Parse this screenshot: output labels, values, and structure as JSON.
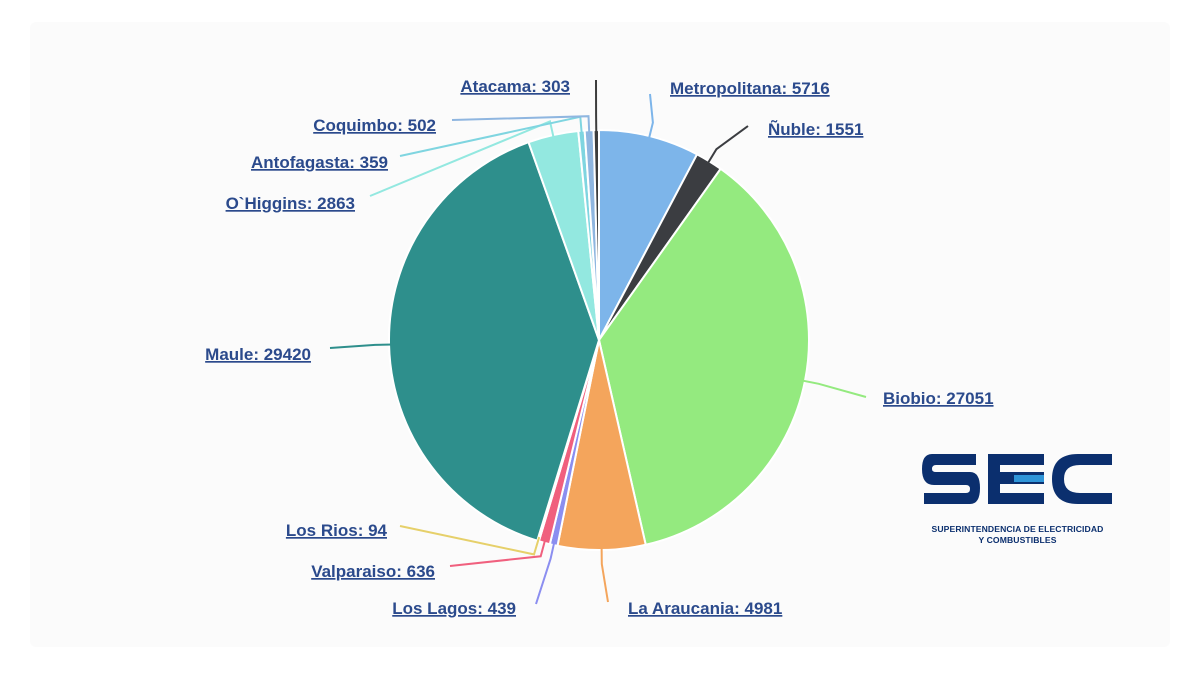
{
  "chart_data": {
    "type": "pie",
    "title": "",
    "label_format": "{name}: {value}",
    "slices": [
      {
        "name": "Metropolitana",
        "value": 5716,
        "color": "#7db5ea"
      },
      {
        "name": "Ñuble",
        "value": 1551,
        "color": "#3b3d41"
      },
      {
        "name": "Biobio",
        "value": 27051,
        "color": "#94ea7f"
      },
      {
        "name": "La Araucania",
        "value": 4981,
        "color": "#f4a55c"
      },
      {
        "name": "Los Lagos",
        "value": 439,
        "color": "#8b8ef0"
      },
      {
        "name": "Valparaiso",
        "value": 636,
        "color": "#f0607e"
      },
      {
        "name": "Los Rios",
        "value": 94,
        "color": "#e6d06a"
      },
      {
        "name": "Maule",
        "value": 29420,
        "color": "#2e8f8c"
      },
      {
        "name": "O`Higgins",
        "value": 2863,
        "color": "#93e8e0"
      },
      {
        "name": "Antofagasta",
        "value": 359,
        "color": "#7fd5e0"
      },
      {
        "name": "Coquimbo",
        "value": 502,
        "color": "#8fb6e0"
      },
      {
        "name": "Atacama",
        "value": 303,
        "color": "#3c3c3c"
      }
    ]
  },
  "logo": {
    "letters": "SEC",
    "line1": "SUPERINTENDENCIA DE ELECTRICIDAD",
    "line2": "Y COMBUSTIBLES",
    "navy": "#0b2f6e",
    "accent": "#2f95d8"
  }
}
